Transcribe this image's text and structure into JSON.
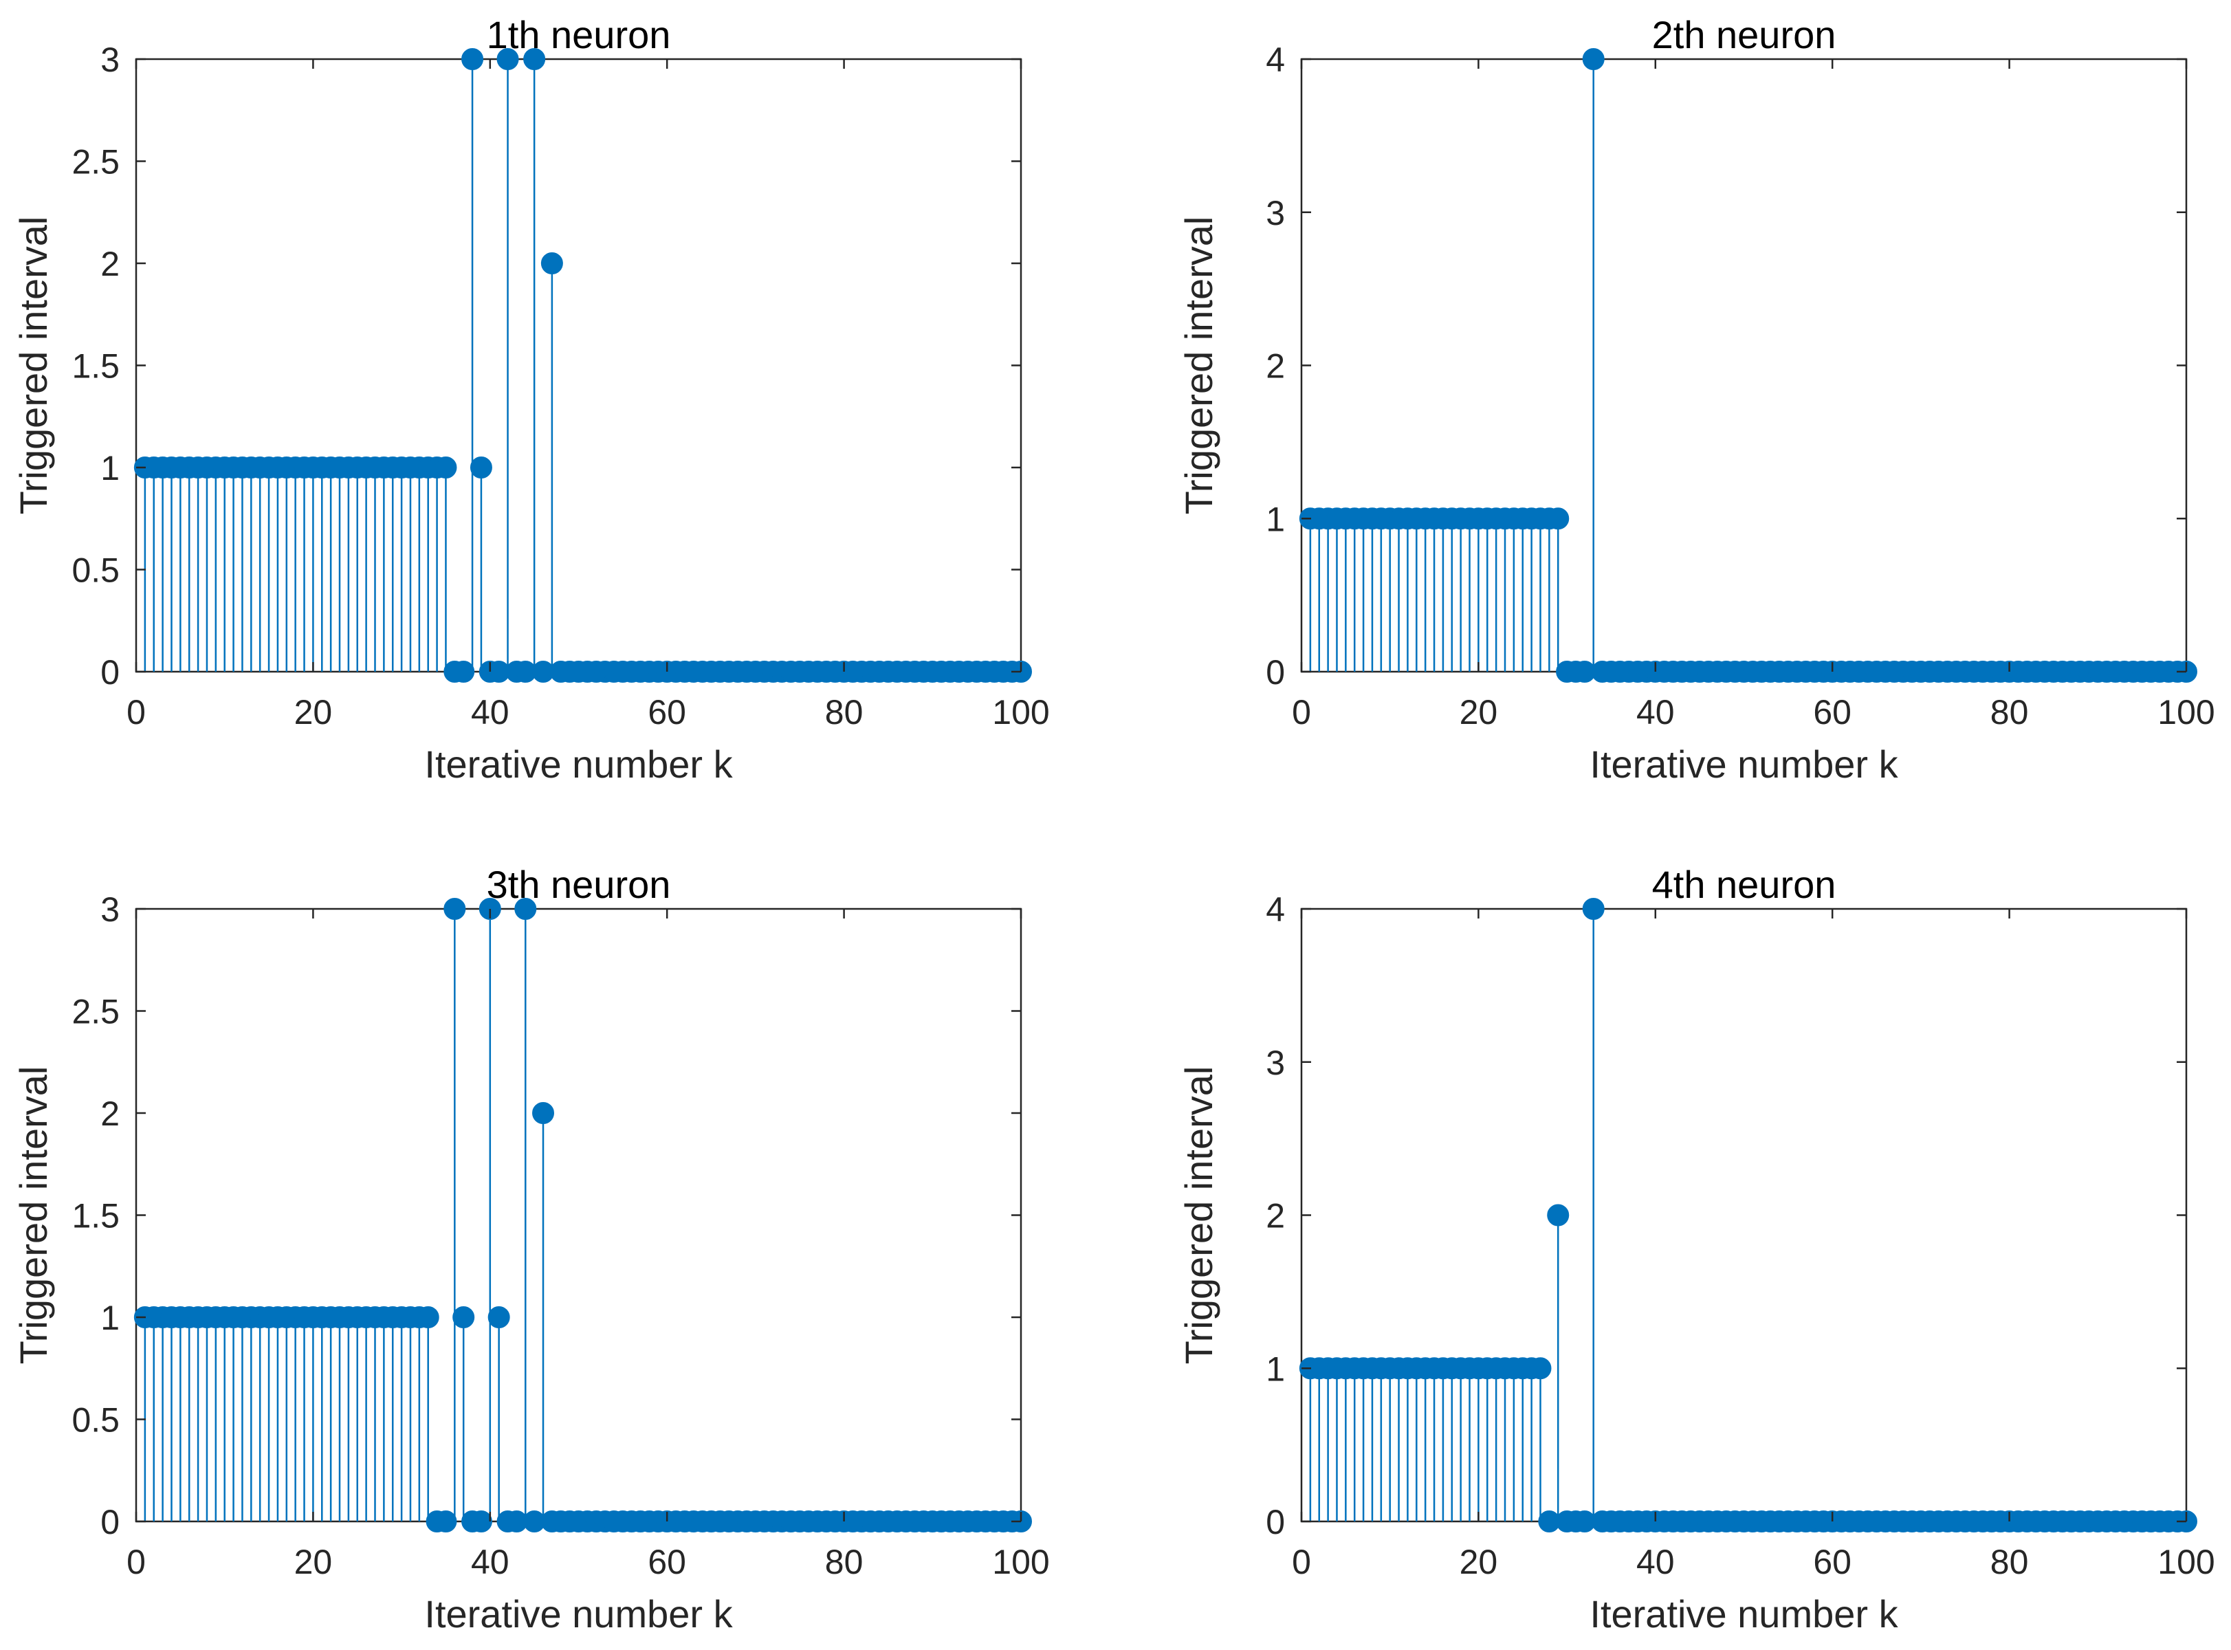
{
  "figure_colors": {
    "series": "#0072BD",
    "axes": "#262626",
    "background": "#ffffff"
  },
  "chart_data": [
    {
      "type": "stem",
      "title": "1th neuron",
      "xlabel": "Iterative number k",
      "ylabel": "Triggered interval",
      "xlim": [
        0,
        100
      ],
      "ylim": [
        0,
        3
      ],
      "xticks": [
        0,
        20,
        40,
        60,
        80,
        100
      ],
      "xtick_labels": [
        "0",
        "20",
        "40",
        "60",
        "80",
        "100"
      ],
      "yticks": [
        0,
        0.5,
        1,
        1.5,
        2,
        2.5,
        3
      ],
      "ytick_labels": [
        "0",
        "0.5",
        "1",
        "1.5",
        "2",
        "2.5",
        "3"
      ],
      "grid": false,
      "x": [
        1,
        2,
        3,
        4,
        5,
        6,
        7,
        8,
        9,
        10,
        11,
        12,
        13,
        14,
        15,
        16,
        17,
        18,
        19,
        20,
        21,
        22,
        23,
        24,
        25,
        26,
        27,
        28,
        29,
        30,
        31,
        32,
        33,
        34,
        35,
        36,
        37,
        38,
        39,
        40,
        41,
        42,
        43,
        44,
        45,
        46,
        47,
        48,
        49,
        50,
        51,
        52,
        53,
        54,
        55,
        56,
        57,
        58,
        59,
        60,
        61,
        62,
        63,
        64,
        65,
        66,
        67,
        68,
        69,
        70,
        71,
        72,
        73,
        74,
        75,
        76,
        77,
        78,
        79,
        80,
        81,
        82,
        83,
        84,
        85,
        86,
        87,
        88,
        89,
        90,
        91,
        92,
        93,
        94,
        95,
        96,
        97,
        98,
        99,
        100
      ],
      "values": [
        1,
        1,
        1,
        1,
        1,
        1,
        1,
        1,
        1,
        1,
        1,
        1,
        1,
        1,
        1,
        1,
        1,
        1,
        1,
        1,
        1,
        1,
        1,
        1,
        1,
        1,
        1,
        1,
        1,
        1,
        1,
        1,
        1,
        1,
        1,
        0,
        0,
        3,
        1,
        0,
        0,
        3,
        0,
        0,
        3,
        0,
        2,
        0,
        0,
        0,
        0,
        0,
        0,
        0,
        0,
        0,
        0,
        0,
        0,
        0,
        0,
        0,
        0,
        0,
        0,
        0,
        0,
        0,
        0,
        0,
        0,
        0,
        0,
        0,
        0,
        0,
        0,
        0,
        0,
        0,
        0,
        0,
        0,
        0,
        0,
        0,
        0,
        0,
        0,
        0,
        0,
        0,
        0,
        0,
        0,
        0,
        0,
        0,
        0,
        0
      ]
    },
    {
      "type": "stem",
      "title": "2th neuron",
      "xlabel": "Iterative number k",
      "ylabel": "Triggered interval",
      "xlim": [
        0,
        100
      ],
      "ylim": [
        0,
        4
      ],
      "xticks": [
        0,
        20,
        40,
        60,
        80,
        100
      ],
      "xtick_labels": [
        "0",
        "20",
        "40",
        "60",
        "80",
        "100"
      ],
      "yticks": [
        0,
        1,
        2,
        3,
        4
      ],
      "ytick_labels": [
        "0",
        "1",
        "2",
        "3",
        "4"
      ],
      "grid": false,
      "x": [
        1,
        2,
        3,
        4,
        5,
        6,
        7,
        8,
        9,
        10,
        11,
        12,
        13,
        14,
        15,
        16,
        17,
        18,
        19,
        20,
        21,
        22,
        23,
        24,
        25,
        26,
        27,
        28,
        29,
        30,
        31,
        32,
        33,
        34,
        35,
        36,
        37,
        38,
        39,
        40,
        41,
        42,
        43,
        44,
        45,
        46,
        47,
        48,
        49,
        50,
        51,
        52,
        53,
        54,
        55,
        56,
        57,
        58,
        59,
        60,
        61,
        62,
        63,
        64,
        65,
        66,
        67,
        68,
        69,
        70,
        71,
        72,
        73,
        74,
        75,
        76,
        77,
        78,
        79,
        80,
        81,
        82,
        83,
        84,
        85,
        86,
        87,
        88,
        89,
        90,
        91,
        92,
        93,
        94,
        95,
        96,
        97,
        98,
        99,
        100
      ],
      "values": [
        1,
        1,
        1,
        1,
        1,
        1,
        1,
        1,
        1,
        1,
        1,
        1,
        1,
        1,
        1,
        1,
        1,
        1,
        1,
        1,
        1,
        1,
        1,
        1,
        1,
        1,
        1,
        1,
        1,
        0,
        0,
        0,
        4,
        0,
        0,
        0,
        0,
        0,
        0,
        0,
        0,
        0,
        0,
        0,
        0,
        0,
        0,
        0,
        0,
        0,
        0,
        0,
        0,
        0,
        0,
        0,
        0,
        0,
        0,
        0,
        0,
        0,
        0,
        0,
        0,
        0,
        0,
        0,
        0,
        0,
        0,
        0,
        0,
        0,
        0,
        0,
        0,
        0,
        0,
        0,
        0,
        0,
        0,
        0,
        0,
        0,
        0,
        0,
        0,
        0,
        0,
        0,
        0,
        0,
        0,
        0,
        0,
        0,
        0,
        0
      ]
    },
    {
      "type": "stem",
      "title": "3th neuron",
      "xlabel": "Iterative number k",
      "ylabel": "Triggered interval",
      "xlim": [
        0,
        100
      ],
      "ylim": [
        0,
        3
      ],
      "xticks": [
        0,
        20,
        40,
        60,
        80,
        100
      ],
      "xtick_labels": [
        "0",
        "20",
        "40",
        "60",
        "80",
        "100"
      ],
      "yticks": [
        0,
        0.5,
        1,
        1.5,
        2,
        2.5,
        3
      ],
      "ytick_labels": [
        "0",
        "0.5",
        "1",
        "1.5",
        "2",
        "2.5",
        "3"
      ],
      "grid": false,
      "x": [
        1,
        2,
        3,
        4,
        5,
        6,
        7,
        8,
        9,
        10,
        11,
        12,
        13,
        14,
        15,
        16,
        17,
        18,
        19,
        20,
        21,
        22,
        23,
        24,
        25,
        26,
        27,
        28,
        29,
        30,
        31,
        32,
        33,
        34,
        35,
        36,
        37,
        38,
        39,
        40,
        41,
        42,
        43,
        44,
        45,
        46,
        47,
        48,
        49,
        50,
        51,
        52,
        53,
        54,
        55,
        56,
        57,
        58,
        59,
        60,
        61,
        62,
        63,
        64,
        65,
        66,
        67,
        68,
        69,
        70,
        71,
        72,
        73,
        74,
        75,
        76,
        77,
        78,
        79,
        80,
        81,
        82,
        83,
        84,
        85,
        86,
        87,
        88,
        89,
        90,
        91,
        92,
        93,
        94,
        95,
        96,
        97,
        98,
        99,
        100
      ],
      "values": [
        1,
        1,
        1,
        1,
        1,
        1,
        1,
        1,
        1,
        1,
        1,
        1,
        1,
        1,
        1,
        1,
        1,
        1,
        1,
        1,
        1,
        1,
        1,
        1,
        1,
        1,
        1,
        1,
        1,
        1,
        1,
        1,
        1,
        0,
        0,
        3,
        1,
        0,
        0,
        3,
        1,
        0,
        0,
        3,
        0,
        2,
        0,
        0,
        0,
        0,
        0,
        0,
        0,
        0,
        0,
        0,
        0,
        0,
        0,
        0,
        0,
        0,
        0,
        0,
        0,
        0,
        0,
        0,
        0,
        0,
        0,
        0,
        0,
        0,
        0,
        0,
        0,
        0,
        0,
        0,
        0,
        0,
        0,
        0,
        0,
        0,
        0,
        0,
        0,
        0,
        0,
        0,
        0,
        0,
        0,
        0,
        0,
        0,
        0,
        0
      ]
    },
    {
      "type": "stem",
      "title": "4th neuron",
      "xlabel": "Iterative number k",
      "ylabel": "Triggered interval",
      "xlim": [
        0,
        100
      ],
      "ylim": [
        0,
        4
      ],
      "xticks": [
        0,
        20,
        40,
        60,
        80,
        100
      ],
      "xtick_labels": [
        "0",
        "20",
        "40",
        "60",
        "80",
        "100"
      ],
      "yticks": [
        0,
        1,
        2,
        3,
        4
      ],
      "ytick_labels": [
        "0",
        "1",
        "2",
        "3",
        "4"
      ],
      "grid": false,
      "x": [
        1,
        2,
        3,
        4,
        5,
        6,
        7,
        8,
        9,
        10,
        11,
        12,
        13,
        14,
        15,
        16,
        17,
        18,
        19,
        20,
        21,
        22,
        23,
        24,
        25,
        26,
        27,
        28,
        29,
        30,
        31,
        32,
        33,
        34,
        35,
        36,
        37,
        38,
        39,
        40,
        41,
        42,
        43,
        44,
        45,
        46,
        47,
        48,
        49,
        50,
        51,
        52,
        53,
        54,
        55,
        56,
        57,
        58,
        59,
        60,
        61,
        62,
        63,
        64,
        65,
        66,
        67,
        68,
        69,
        70,
        71,
        72,
        73,
        74,
        75,
        76,
        77,
        78,
        79,
        80,
        81,
        82,
        83,
        84,
        85,
        86,
        87,
        88,
        89,
        90,
        91,
        92,
        93,
        94,
        95,
        96,
        97,
        98,
        99,
        100
      ],
      "values": [
        1,
        1,
        1,
        1,
        1,
        1,
        1,
        1,
        1,
        1,
        1,
        1,
        1,
        1,
        1,
        1,
        1,
        1,
        1,
        1,
        1,
        1,
        1,
        1,
        1,
        1,
        1,
        0,
        2,
        0,
        0,
        0,
        4,
        0,
        0,
        0,
        0,
        0,
        0,
        0,
        0,
        0,
        0,
        0,
        0,
        0,
        0,
        0,
        0,
        0,
        0,
        0,
        0,
        0,
        0,
        0,
        0,
        0,
        0,
        0,
        0,
        0,
        0,
        0,
        0,
        0,
        0,
        0,
        0,
        0,
        0,
        0,
        0,
        0,
        0,
        0,
        0,
        0,
        0,
        0,
        0,
        0,
        0,
        0,
        0,
        0,
        0,
        0,
        0,
        0,
        0,
        0,
        0,
        0,
        0,
        0,
        0,
        0,
        0,
        0
      ]
    }
  ]
}
